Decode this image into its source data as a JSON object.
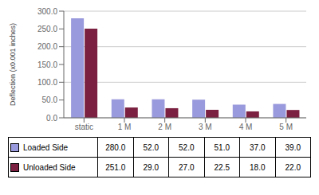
{
  "chart_data": {
    "type": "bar",
    "categories": [
      "static",
      "1 M",
      "2 M",
      "3 M",
      "4 M",
      "5 M"
    ],
    "series": [
      {
        "name": "Loaded Side",
        "color": "#9999dd",
        "values": [
          280.0,
          52.0,
          52.0,
          51.0,
          37.0,
          39.0
        ],
        "value_labels": [
          "280.0",
          "52.0",
          "52.0",
          "51.0",
          "37.0",
          "39.0"
        ]
      },
      {
        "name": "Unloaded Side",
        "color": "#7b2040",
        "values": [
          251.0,
          29.0,
          27.0,
          22.5,
          18.0,
          22.0
        ],
        "value_labels": [
          "251.0",
          "29.0",
          "27.0",
          "22.5",
          "18.0",
          "22.0"
        ]
      }
    ],
    "ylabel": "Deflection (x0.001 inches)",
    "ylim": [
      0,
      300
    ],
    "yticks": [
      {
        "value": 0,
        "label": "0.0"
      },
      {
        "value": 50,
        "label": "50.0"
      },
      {
        "value": 100,
        "label": "100.0"
      },
      {
        "value": 150,
        "label": "150.0"
      },
      {
        "value": 200,
        "label": "200.0"
      },
      {
        "value": 250,
        "label": "250.0"
      },
      {
        "value": 300,
        "label": "300.0"
      }
    ],
    "grid": true,
    "legend": "bottom"
  }
}
